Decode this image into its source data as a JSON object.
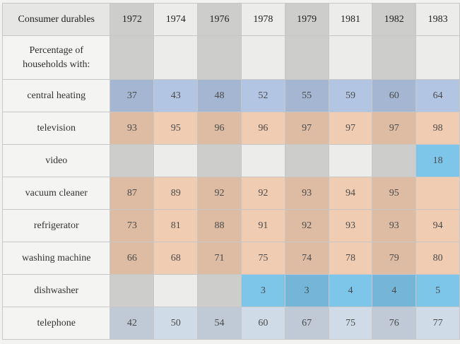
{
  "table": {
    "title": "Consumer durables",
    "subtitle": "Percentage of\nhouseholds with:",
    "years": [
      "1972",
      "1974",
      "1976",
      "1978",
      "1979",
      "1981",
      "1982",
      "1983"
    ],
    "rows": [
      {
        "label": "central heating",
        "values": [
          "37",
          "43",
          "48",
          "52",
          "55",
          "59",
          "60",
          "64"
        ]
      },
      {
        "label": "television",
        "values": [
          "93",
          "95",
          "96",
          "96",
          "97",
          "97",
          "97",
          "98"
        ]
      },
      {
        "label": "video",
        "values": [
          "",
          "",
          "",
          "",
          "",
          "",
          "",
          "18"
        ]
      },
      {
        "label": "vacuum cleaner",
        "values": [
          "87",
          "89",
          "92",
          "92",
          "93",
          "94",
          "95",
          ""
        ]
      },
      {
        "label": "refrigerator",
        "values": [
          "73",
          "81",
          "88",
          "91",
          "92",
          "93",
          "93",
          "94"
        ]
      },
      {
        "label": "washing machine",
        "values": [
          "66",
          "68",
          "71",
          "75",
          "74",
          "78",
          "79",
          "80"
        ]
      },
      {
        "label": "dishwasher",
        "values": [
          "",
          "",
          "",
          "3",
          "3",
          "4",
          "4",
          "5"
        ]
      },
      {
        "label": "telephone",
        "values": [
          "42",
          "50",
          "54",
          "60",
          "67",
          "75",
          "76",
          "77"
        ]
      }
    ]
  },
  "colors": {
    "heating_highlight": "#b2c6e4",
    "appliance_highlight": "#f0ccb2",
    "new_item_highlight": "#7ec5ea",
    "telephone_highlight": "#cfdbe7"
  }
}
